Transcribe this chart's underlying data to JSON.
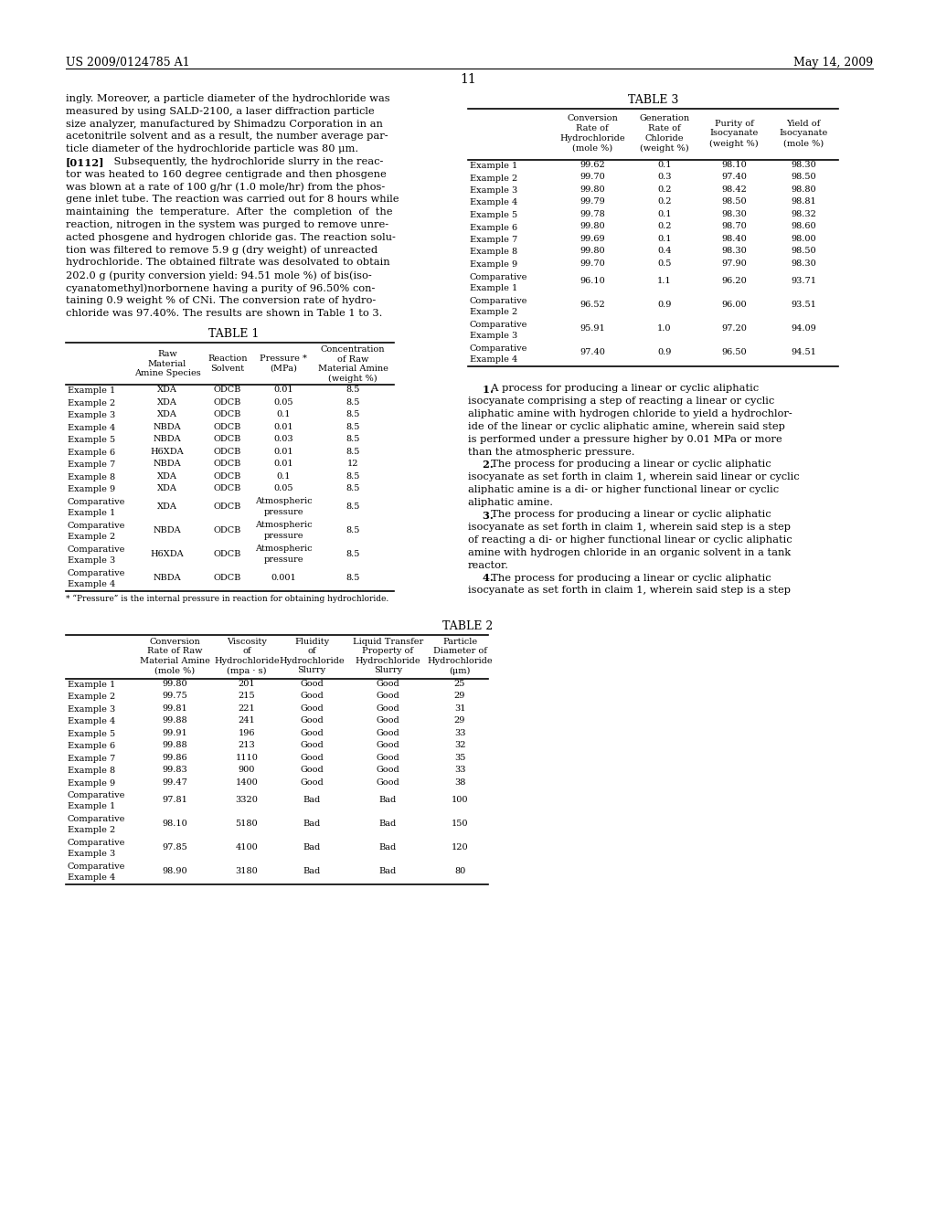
{
  "header_left": "US 2009/0124785 A1",
  "header_right": "May 14, 2009",
  "page_number": "11",
  "background_color": "#ffffff",
  "text_color": "#000000",
  "body_text_left": [
    "ingly. Moreover, a particle diameter of the hydrochloride was",
    "measured by using SALD-2100, a laser diffraction particle",
    "size analyzer, manufactured by Shimadzu Corporation in an",
    "acetonitrile solvent and as a result, the number average par-",
    "ticle diameter of the hydrochloride particle was 80 μm.",
    "[0112]    Subsequently, the hydrochloride slurry in the reac-",
    "tor was heated to 160 degree centigrade and then phosgene",
    "was blown at a rate of 100 g/hr (1.0 mole/hr) from the phos-",
    "gene inlet tube. The reaction was carried out for 8 hours while",
    "maintaining  the  temperature.  After  the  completion  of  the",
    "reaction, nitrogen in the system was purged to remove unre-",
    "acted phosgene and hydrogen chloride gas. The reaction solu-",
    "tion was filtered to remove 5.9 g (dry weight) of unreacted",
    "hydrochloride. The obtained filtrate was desolvated to obtain",
    "202.0 g (purity conversion yield: 94.51 mole %) of bis(iso-",
    "cyanatomethyl)norbornene having a purity of 96.50% con-",
    "taining 0.9 weight % of CNi. The conversion rate of hydro-",
    "chloride was 97.40%. The results are shown in Table 1 to 3."
  ],
  "table1_title": "TABLE 1",
  "table1_headers": [
    "",
    "Raw\nMaterial\nAmine Species",
    "Reaction\nSolvent",
    "Pressure *\n(MPa)",
    "Concentration\nof Raw\nMaterial Amine\n(weight %)"
  ],
  "table1_col_widths": [
    75,
    72,
    60,
    62,
    90
  ],
  "table1_rows": [
    [
      "Example 1",
      "XDA",
      "ODCB",
      "0.01",
      "8.5"
    ],
    [
      "Example 2",
      "XDA",
      "ODCB",
      "0.05",
      "8.5"
    ],
    [
      "Example 3",
      "XDA",
      "ODCB",
      "0.1",
      "8.5"
    ],
    [
      "Example 4",
      "NBDA",
      "ODCB",
      "0.01",
      "8.5"
    ],
    [
      "Example 5",
      "NBDA",
      "ODCB",
      "0.03",
      "8.5"
    ],
    [
      "Example 6",
      "H6XDA",
      "ODCB",
      "0.01",
      "8.5"
    ],
    [
      "Example 7",
      "NBDA",
      "ODCB",
      "0.01",
      "12"
    ],
    [
      "Example 8",
      "XDA",
      "ODCB",
      "0.1",
      "8.5"
    ],
    [
      "Example 9",
      "XDA",
      "ODCB",
      "0.05",
      "8.5"
    ],
    [
      "Comparative\nExample 1",
      "XDA",
      "ODCB",
      "Atmospheric\npressure",
      "8.5"
    ],
    [
      "Comparative\nExample 2",
      "NBDA",
      "ODCB",
      "Atmospheric\npressure",
      "8.5"
    ],
    [
      "Comparative\nExample 3",
      "H6XDA",
      "ODCB",
      "Atmospheric\npressure",
      "8.5"
    ],
    [
      "Comparative\nExample 4",
      "NBDA",
      "ODCB",
      "0.001",
      "8.5"
    ]
  ],
  "table1_footnote": "* “Pressure” is the internal pressure in reaction for obtaining hydrochloride.",
  "table2_title": "TABLE 2",
  "table2_headers": [
    "",
    "Conversion\nRate of Raw\nMaterial Amine\n(mole %)",
    "Viscosity\nof\nHydrochloride\n(mpa · s)",
    "Fluidity\nof\nHydrochloride\nSlurry",
    "Liquid Transfer\nProperty of\nHydrochloride\nSlurry",
    "Particle\nDiameter of\nHydrochloride\n(μm)"
  ],
  "table2_col_widths": [
    75,
    88,
    70,
    72,
    95,
    62
  ],
  "table2_rows": [
    [
      "Example 1",
      "99.80",
      "201",
      "Good",
      "Good",
      "25"
    ],
    [
      "Example 2",
      "99.75",
      "215",
      "Good",
      "Good",
      "29"
    ],
    [
      "Example 3",
      "99.81",
      "221",
      "Good",
      "Good",
      "31"
    ],
    [
      "Example 4",
      "99.88",
      "241",
      "Good",
      "Good",
      "29"
    ],
    [
      "Example 5",
      "99.91",
      "196",
      "Good",
      "Good",
      "33"
    ],
    [
      "Example 6",
      "99.88",
      "213",
      "Good",
      "Good",
      "32"
    ],
    [
      "Example 7",
      "99.86",
      "1110",
      "Good",
      "Good",
      "35"
    ],
    [
      "Example 8",
      "99.83",
      "900",
      "Good",
      "Good",
      "33"
    ],
    [
      "Example 9",
      "99.47",
      "1400",
      "Good",
      "Good",
      "38"
    ],
    [
      "Comparative\nExample 1",
      "97.81",
      "3320",
      "Bad",
      "Bad",
      "100"
    ],
    [
      "Comparative\nExample 2",
      "98.10",
      "5180",
      "Bad",
      "Bad",
      "150"
    ],
    [
      "Comparative\nExample 3",
      "97.85",
      "4100",
      "Bad",
      "Bad",
      "120"
    ],
    [
      "Comparative\nExample 4",
      "98.90",
      "3180",
      "Bad",
      "Bad",
      "80"
    ]
  ],
  "table3_title": "TABLE 3",
  "table3_headers": [
    "",
    "Conversion\nRate of\nHydrochloride\n(mole %)",
    "Generation\nRate of\nChloride\n(weight %)",
    "Purity of\nIsocyanate\n(weight %)",
    "Yield of\nIsocyanate\n(mole %)"
  ],
  "table3_col_widths": [
    95,
    82,
    76,
    76,
    76
  ],
  "table3_rows": [
    [
      "Example 1",
      "99.62",
      "0.1",
      "98.10",
      "98.30"
    ],
    [
      "Example 2",
      "99.70",
      "0.3",
      "97.40",
      "98.50"
    ],
    [
      "Example 3",
      "99.80",
      "0.2",
      "98.42",
      "98.80"
    ],
    [
      "Example 4",
      "99.79",
      "0.2",
      "98.50",
      "98.81"
    ],
    [
      "Example 5",
      "99.78",
      "0.1",
      "98.30",
      "98.32"
    ],
    [
      "Example 6",
      "99.80",
      "0.2",
      "98.70",
      "98.60"
    ],
    [
      "Example 7",
      "99.69",
      "0.1",
      "98.40",
      "98.00"
    ],
    [
      "Example 8",
      "99.80",
      "0.4",
      "98.30",
      "98.50"
    ],
    [
      "Example 9",
      "99.70",
      "0.5",
      "97.90",
      "98.30"
    ],
    [
      "Comparative\nExample 1",
      "96.10",
      "1.1",
      "96.20",
      "93.71"
    ],
    [
      "Comparative\nExample 2",
      "96.52",
      "0.9",
      "96.00",
      "93.51"
    ],
    [
      "Comparative\nExample 3",
      "95.91",
      "1.0",
      "97.20",
      "94.09"
    ],
    [
      "Comparative\nExample 4",
      "97.40",
      "0.9",
      "96.50",
      "94.51"
    ]
  ],
  "claims_text": [
    "    1.  A process for producing a linear or cyclic aliphatic",
    "isocyanate comprising a step of reacting a linear or cyclic",
    "aliphatic amine with hydrogen chloride to yield a hydrochlor-",
    "ide of the linear or cyclic aliphatic amine, wherein said step",
    "is performed under a pressure higher by 0.01 MPa or more",
    "than the atmospheric pressure.",
    "    2.  The process for producing a linear or cyclic aliphatic",
    "isocyanate as set forth in claim 1, wherein said linear or cyclic",
    "aliphatic amine is a di- or higher functional linear or cyclic",
    "aliphatic amine.",
    "    3.  The process for producing a linear or cyclic aliphatic",
    "isocyanate as set forth in claim 1, wherein said step is a step",
    "of reacting a di- or higher functional linear or cyclic aliphatic",
    "amine with hydrogen chloride in an organic solvent in a tank",
    "reactor.",
    "    4.  The process for producing a linear or cyclic aliphatic",
    "isocyanate as set forth in claim 1, wherein said step is a step"
  ]
}
